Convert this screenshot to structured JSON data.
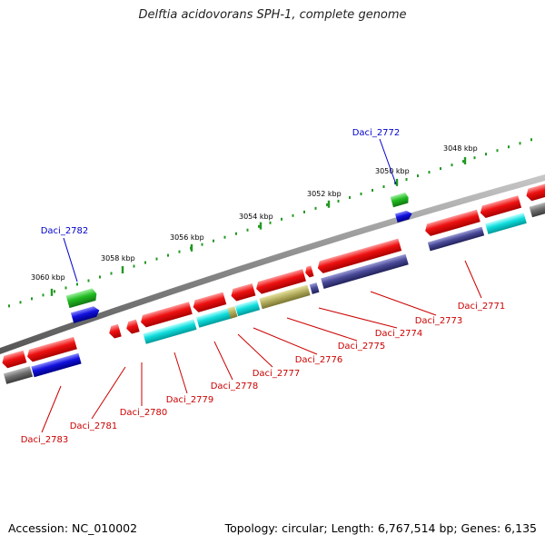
{
  "title": "Delftia acidovorans SPH-1, complete genome",
  "footer": {
    "accession": "Accession: NC_010002",
    "topology": "Topology: circular; Length: 6,767,514 bp; Genes: 6,135"
  },
  "ruler": [
    "3048 kbp",
    "3050 kbp",
    "3052 kbp",
    "3054 kbp",
    "3056 kbp",
    "3058 kbp",
    "3060 kbp"
  ],
  "gene_labels": [
    {
      "text": "Daci_2772",
      "color": "#0000cc"
    },
    {
      "text": "Daci_2782",
      "color": "#0000cc"
    },
    {
      "text": "Daci_2771",
      "color": "#cc0000"
    },
    {
      "text": "Daci_2773",
      "color": "#cc0000"
    },
    {
      "text": "Daci_2774",
      "color": "#cc0000"
    },
    {
      "text": "Daci_2775",
      "color": "#cc0000"
    },
    {
      "text": "Daci_2776",
      "color": "#cc0000"
    },
    {
      "text": "Daci_2777",
      "color": "#cc0000"
    },
    {
      "text": "Daci_2778",
      "color": "#cc0000"
    },
    {
      "text": "Daci_2779",
      "color": "#cc0000"
    },
    {
      "text": "Daci_2780",
      "color": "#cc0000"
    },
    {
      "text": "Daci_2781",
      "color": "#cc0000"
    },
    {
      "text": "Daci_2783",
      "color": "#cc0000"
    }
  ],
  "colors": {
    "backbone": "#8a8a8a",
    "cds_reverse": "#ee1111",
    "cds_forward": "#22bb22",
    "cog_blue": "#1111dd",
    "cog_cyan": "#11dddd",
    "cog_navy": "#4a4a99",
    "cog_olive": "#b5b060",
    "cog_gray": "#707070",
    "ruler_tick": "#229922"
  }
}
